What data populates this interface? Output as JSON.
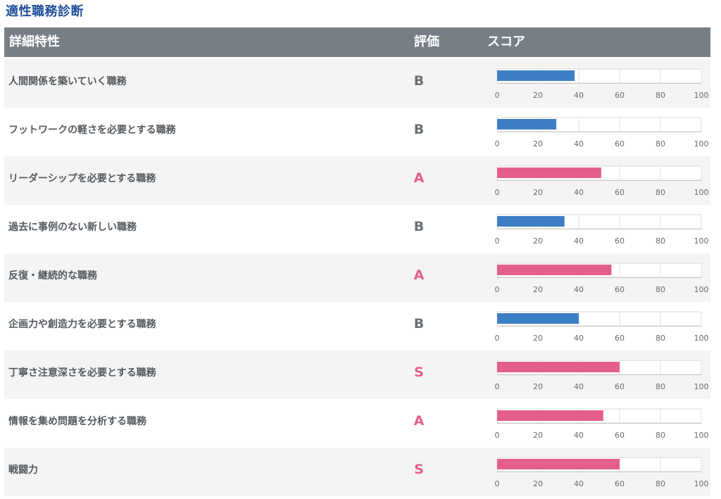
{
  "page": {
    "title": "適性職務診断"
  },
  "header": {
    "trait_label": "詳細特性",
    "rating_label": "評価",
    "score_label": "スコア"
  },
  "colors": {
    "header_bg": "#787e86",
    "title": "#1f4f99",
    "bar_blue": "#3d7fc7",
    "bar_pink": "#e35f8a",
    "rating_gray": "#6b6f73",
    "rating_pink": "#e35f8a"
  },
  "chart_data": {
    "type": "bar",
    "orientation": "horizontal",
    "xlim": [
      0,
      100
    ],
    "xticks": [
      "0",
      "20",
      "40",
      "60",
      "80",
      "100"
    ],
    "grid": true,
    "categories": [
      "人間関係を築いていく職務",
      "フットワークの軽さを必要とする職務",
      "リーダーシップを必要とする職務",
      "過去に事例のない新しい職務",
      "反復・継続的な職務",
      "企画力や創造力を必要とする職務",
      "丁寧さ注意深さを必要とする職務",
      "情報を集め問題を分析する職務",
      "戦闘力"
    ],
    "ratings": [
      "B",
      "B",
      "A",
      "B",
      "A",
      "B",
      "S",
      "A",
      "S"
    ],
    "values": [
      38,
      29,
      51,
      33,
      56,
      40,
      60,
      52,
      60
    ]
  }
}
